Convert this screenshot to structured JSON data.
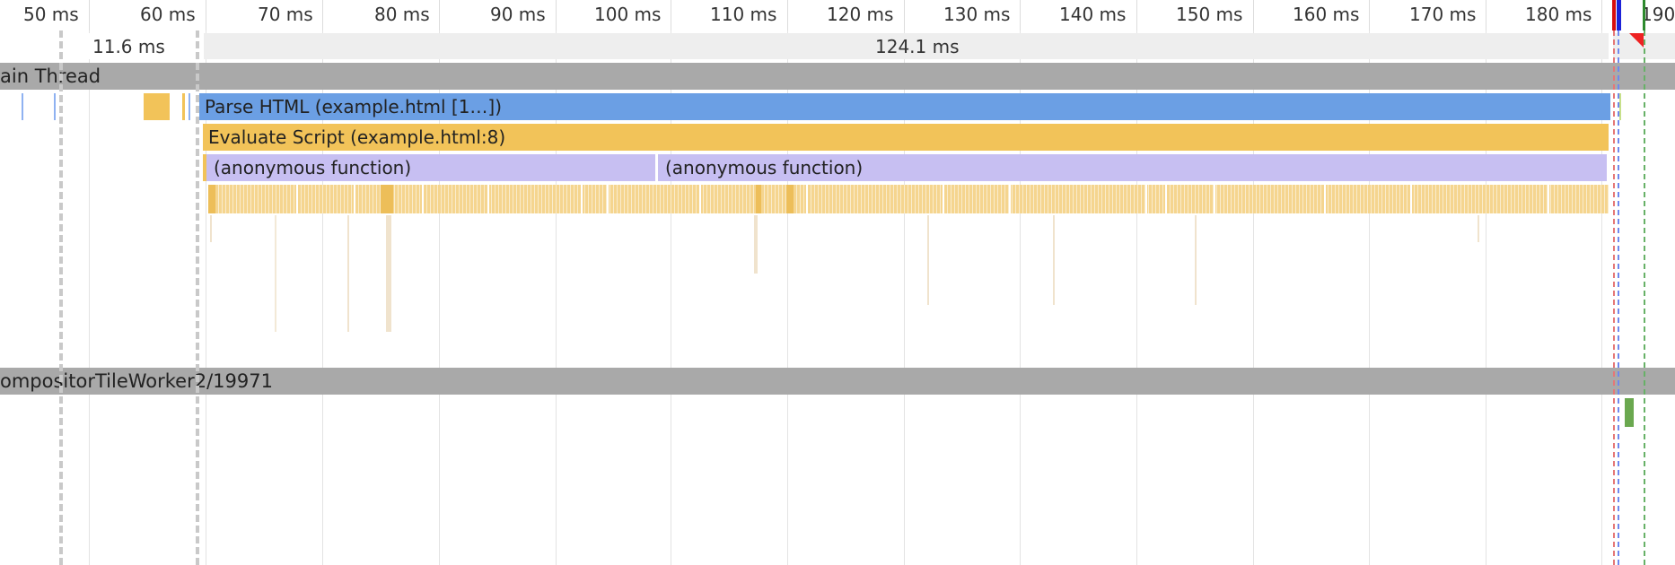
{
  "ruler": {
    "ticks": [
      "50 ms",
      "60 ms",
      "70 ms",
      "80 ms",
      "90 ms",
      "100 ms",
      "110 ms",
      "120 ms",
      "130 ms",
      "140 ms",
      "150 ms",
      "160 ms",
      "170 ms",
      "180 ms",
      "190"
    ]
  },
  "frames": {
    "first_duration": "11.6 ms",
    "second_duration": "124.1 ms"
  },
  "tracks": {
    "main": {
      "title": "ain Thread"
    },
    "compositor": {
      "title": "ompositorTileWorker2/19971"
    }
  },
  "events": {
    "parse_html": "Parse HTML (example.html [1…])",
    "evaluate_script": "Evaluate Script (example.html:8)",
    "anon_fn_1": "(anonymous function)",
    "anon_fn_2": "(anonymous function)"
  },
  "colors": {
    "parse_html": "#6b9fe4",
    "script": "#f2c359",
    "js_function": "#c7bff2",
    "track_header": "#a9a9a9",
    "frame_bar": "#eeeeee",
    "marker_red": "#d80d0d",
    "marker_blue": "#1c22d8",
    "marker_green": "#2d8a2d"
  }
}
